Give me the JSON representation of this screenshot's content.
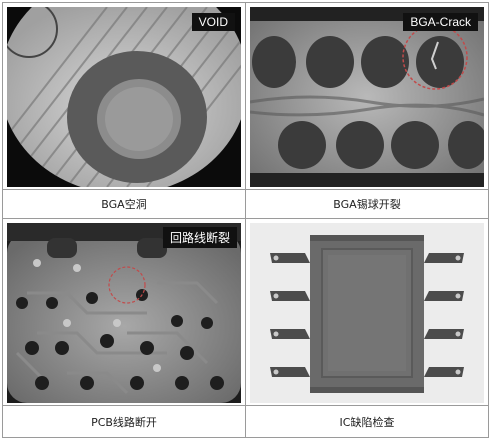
{
  "panels": [
    {
      "tag": "VOID",
      "caption": "BGA空洞"
    },
    {
      "tag": "BGA-Crack",
      "caption": "BGA锡球开裂"
    },
    {
      "tag": "回路线断裂",
      "caption": "PCB线路断开"
    },
    {
      "tag": "",
      "caption": "IC缺陷检查"
    }
  ]
}
